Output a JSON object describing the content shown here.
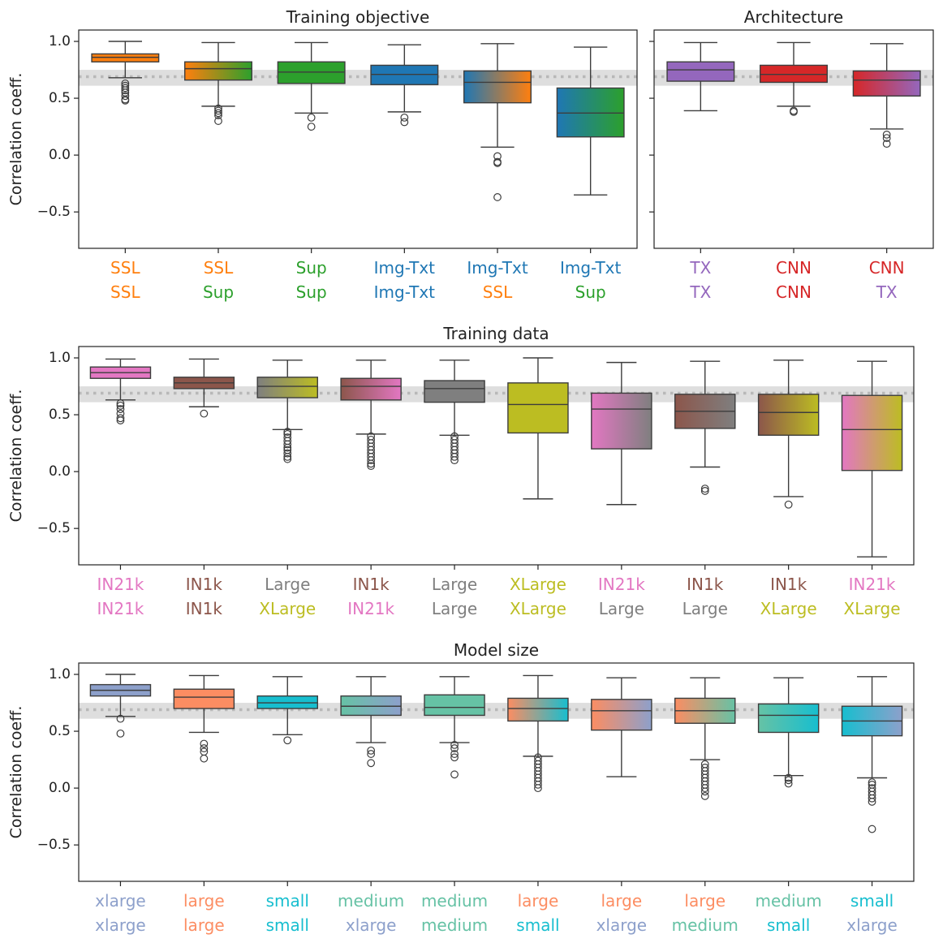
{
  "chart_data": [
    {
      "id": "objective",
      "type": "box",
      "title": "Training objective",
      "ylabel": "Correlation coeff.",
      "ylim": [
        -0.82,
        1.1
      ],
      "yticks": [
        1.0,
        0.5,
        0.0,
        -0.5
      ],
      "ytick_labels": [
        "1.0",
        "0.5",
        "0.0",
        "−0.5"
      ],
      "reference_band": [
        0.61,
        0.75
      ],
      "reference_line": 0.69,
      "boxes": [
        {
          "labels": [
            "SSL",
            "SSL"
          ],
          "colors": [
            "#ff7f0e",
            "#ff7f0e"
          ],
          "q1": 0.82,
          "median": 0.86,
          "q3": 0.89,
          "whisker_low": 0.68,
          "whisker_high": 1.0,
          "outliers": [
            0.63,
            0.61,
            0.59,
            0.57,
            0.55,
            0.52,
            0.49,
            0.48
          ]
        },
        {
          "labels": [
            "SSL",
            "Sup"
          ],
          "colors": [
            "#ff7f0e",
            "#2ca02c"
          ],
          "q1": 0.66,
          "median": 0.76,
          "q3": 0.82,
          "whisker_low": 0.43,
          "whisker_high": 0.99,
          "outliers": [
            0.41,
            0.39,
            0.37,
            0.35,
            0.3
          ]
        },
        {
          "labels": [
            "Sup",
            "Sup"
          ],
          "colors": [
            "#2ca02c",
            "#2ca02c"
          ],
          "q1": 0.63,
          "median": 0.73,
          "q3": 0.82,
          "whisker_low": 0.37,
          "whisker_high": 0.99,
          "outliers": [
            0.33,
            0.25
          ]
        },
        {
          "labels": [
            "Img-Txt",
            "Img-Txt"
          ],
          "colors": [
            "#1f77b4",
            "#1f77b4"
          ],
          "q1": 0.62,
          "median": 0.71,
          "q3": 0.79,
          "whisker_low": 0.38,
          "whisker_high": 0.97,
          "outliers": [
            0.33,
            0.29
          ]
        },
        {
          "labels": [
            "Img-Txt",
            "SSL"
          ],
          "colors": [
            "#1f77b4",
            "#ff7f0e"
          ],
          "q1": 0.46,
          "median": 0.64,
          "q3": 0.74,
          "whisker_low": 0.07,
          "whisker_high": 0.98,
          "outliers": [
            -0.01,
            -0.06,
            -0.07,
            -0.37
          ]
        },
        {
          "labels": [
            "Img-Txt",
            "Sup"
          ],
          "colors": [
            "#1f77b4",
            "#2ca02c"
          ],
          "q1": 0.16,
          "median": 0.37,
          "q3": 0.59,
          "whisker_low": -0.35,
          "whisker_high": 0.95,
          "outliers": []
        }
      ]
    },
    {
      "id": "architecture",
      "type": "box",
      "title": "Architecture",
      "ylim": [
        -0.82,
        1.1
      ],
      "reference_band": [
        0.61,
        0.75
      ],
      "reference_line": 0.69,
      "boxes": [
        {
          "labels": [
            "TX",
            "TX"
          ],
          "colors": [
            "#9467bd",
            "#9467bd"
          ],
          "q1": 0.65,
          "median": 0.75,
          "q3": 0.82,
          "whisker_low": 0.39,
          "whisker_high": 0.99,
          "outliers": []
        },
        {
          "labels": [
            "CNN",
            "CNN"
          ],
          "colors": [
            "#d62728",
            "#d62728"
          ],
          "q1": 0.64,
          "median": 0.71,
          "q3": 0.79,
          "whisker_low": 0.43,
          "whisker_high": 0.99,
          "outliers": [
            0.39,
            0.38
          ]
        },
        {
          "labels": [
            "CNN",
            "TX"
          ],
          "colors": [
            "#d62728",
            "#9467bd"
          ],
          "q1": 0.52,
          "median": 0.66,
          "q3": 0.74,
          "whisker_low": 0.23,
          "whisker_high": 0.98,
          "outliers": [
            0.18,
            0.15,
            0.1
          ]
        }
      ]
    },
    {
      "id": "data",
      "type": "box",
      "title": "Training data",
      "ylabel": "Correlation coeff.",
      "ylim": [
        -0.82,
        1.1
      ],
      "yticks": [
        1.0,
        0.5,
        0.0,
        -0.5
      ],
      "ytick_labels": [
        "1.0",
        "0.5",
        "0.0",
        "−0.5"
      ],
      "reference_band": [
        0.61,
        0.75
      ],
      "reference_line": 0.69,
      "boxes": [
        {
          "labels": [
            "IN21k",
            "IN21k"
          ],
          "colors": [
            "#e377c2",
            "#e377c2"
          ],
          "q1": 0.82,
          "median": 0.87,
          "q3": 0.92,
          "whisker_low": 0.63,
          "whisker_high": 0.99,
          "outliers": [
            0.6,
            0.58,
            0.55,
            0.51,
            0.47,
            0.45
          ]
        },
        {
          "labels": [
            "IN1k",
            "IN1k"
          ],
          "colors": [
            "#8c564b",
            "#8c564b"
          ],
          "q1": 0.73,
          "median": 0.78,
          "q3": 0.83,
          "whisker_low": 0.57,
          "whisker_high": 0.99,
          "outliers": [
            0.51
          ]
        },
        {
          "labels": [
            "Large",
            "XLarge"
          ],
          "colors": [
            "#7f7f7f",
            "#bcbd22"
          ],
          "q1": 0.65,
          "median": 0.75,
          "q3": 0.83,
          "whisker_low": 0.37,
          "whisker_high": 0.98,
          "outliers": [
            0.35,
            0.33,
            0.3,
            0.27,
            0.24,
            0.21,
            0.19,
            0.16,
            0.13,
            0.11
          ]
        },
        {
          "labels": [
            "IN1k",
            "IN21k"
          ],
          "colors": [
            "#8c564b",
            "#e377c2"
          ],
          "q1": 0.63,
          "median": 0.75,
          "q3": 0.82,
          "whisker_low": 0.33,
          "whisker_high": 0.98,
          "outliers": [
            0.31,
            0.28,
            0.25,
            0.22,
            0.19,
            0.16,
            0.13,
            0.1,
            0.07,
            0.05
          ]
        },
        {
          "labels": [
            "Large",
            "Large"
          ],
          "colors": [
            "#7f7f7f",
            "#7f7f7f"
          ],
          "q1": 0.61,
          "median": 0.73,
          "q3": 0.8,
          "whisker_low": 0.32,
          "whisker_high": 0.98,
          "outliers": [
            0.31,
            0.28,
            0.25,
            0.22,
            0.19,
            0.16,
            0.13,
            0.1
          ]
        },
        {
          "labels": [
            "XLarge",
            "XLarge"
          ],
          "colors": [
            "#bcbd22",
            "#bcbd22"
          ],
          "q1": 0.34,
          "median": 0.59,
          "q3": 0.78,
          "whisker_low": -0.24,
          "whisker_high": 1.0,
          "outliers": []
        },
        {
          "labels": [
            "IN21k",
            "Large"
          ],
          "colors": [
            "#e377c2",
            "#7f7f7f"
          ],
          "q1": 0.2,
          "median": 0.55,
          "q3": 0.69,
          "whisker_low": -0.29,
          "whisker_high": 0.96,
          "outliers": []
        },
        {
          "labels": [
            "IN1k",
            "Large"
          ],
          "colors": [
            "#8c564b",
            "#7f7f7f"
          ],
          "q1": 0.38,
          "median": 0.53,
          "q3": 0.68,
          "whisker_low": 0.04,
          "whisker_high": 0.97,
          "outliers": [
            -0.15,
            -0.17
          ]
        },
        {
          "labels": [
            "IN1k",
            "XLarge"
          ],
          "colors": [
            "#8c564b",
            "#bcbd22"
          ],
          "q1": 0.32,
          "median": 0.52,
          "q3": 0.68,
          "whisker_low": -0.22,
          "whisker_high": 0.98,
          "outliers": [
            -0.29
          ]
        },
        {
          "labels": [
            "IN21k",
            "XLarge"
          ],
          "colors": [
            "#e377c2",
            "#bcbd22"
          ],
          "q1": 0.01,
          "median": 0.37,
          "q3": 0.67,
          "whisker_low": -0.75,
          "whisker_high": 0.97,
          "outliers": []
        }
      ]
    },
    {
      "id": "size",
      "type": "box",
      "title": "Model size",
      "ylabel": "Correlation coeff.",
      "ylim": [
        -0.82,
        1.1
      ],
      "yticks": [
        1.0,
        0.5,
        0.0,
        -0.5
      ],
      "ytick_labels": [
        "1.0",
        "0.5",
        "0.0",
        "−0.5"
      ],
      "reference_band": [
        0.61,
        0.75
      ],
      "reference_line": 0.69,
      "boxes": [
        {
          "labels": [
            "xlarge",
            "xlarge"
          ],
          "colors": [
            "#8da0cb",
            "#8da0cb"
          ],
          "q1": 0.81,
          "median": 0.86,
          "q3": 0.91,
          "whisker_low": 0.63,
          "whisker_high": 1.0,
          "outliers": [
            0.61,
            0.48
          ]
        },
        {
          "labels": [
            "large",
            "large"
          ],
          "colors": [
            "#fc8d62",
            "#fc8d62"
          ],
          "q1": 0.7,
          "median": 0.8,
          "q3": 0.87,
          "whisker_low": 0.49,
          "whisker_high": 0.99,
          "outliers": [
            0.39,
            0.35,
            0.32,
            0.26
          ]
        },
        {
          "labels": [
            "small",
            "small"
          ],
          "colors": [
            "#17becf",
            "#17becf"
          ],
          "q1": 0.7,
          "median": 0.75,
          "q3": 0.81,
          "whisker_low": 0.47,
          "whisker_high": 0.98,
          "outliers": [
            0.42
          ]
        },
        {
          "labels": [
            "medium",
            "xlarge"
          ],
          "colors": [
            "#66c2a5",
            "#8da0cb"
          ],
          "q1": 0.64,
          "median": 0.72,
          "q3": 0.81,
          "whisker_low": 0.4,
          "whisker_high": 0.98,
          "outliers": [
            0.33,
            0.3,
            0.22
          ]
        },
        {
          "labels": [
            "medium",
            "medium"
          ],
          "colors": [
            "#66c2a5",
            "#66c2a5"
          ],
          "q1": 0.64,
          "median": 0.71,
          "q3": 0.82,
          "whisker_low": 0.4,
          "whisker_high": 0.98,
          "outliers": [
            0.38,
            0.35,
            0.3,
            0.27,
            0.12
          ]
        },
        {
          "labels": [
            "large",
            "small"
          ],
          "colors": [
            "#fc8d62",
            "#17becf"
          ],
          "q1": 0.59,
          "median": 0.7,
          "q3": 0.79,
          "whisker_low": 0.28,
          "whisker_high": 0.99,
          "outliers": [
            0.27,
            0.24,
            0.21,
            0.18,
            0.15,
            0.12,
            0.09,
            0.06,
            0.03,
            0.0
          ]
        },
        {
          "labels": [
            "large",
            "xlarge"
          ],
          "colors": [
            "#fc8d62",
            "#8da0cb"
          ],
          "q1": 0.51,
          "median": 0.68,
          "q3": 0.78,
          "whisker_low": 0.1,
          "whisker_high": 0.97,
          "outliers": []
        },
        {
          "labels": [
            "large",
            "medium"
          ],
          "colors": [
            "#fc8d62",
            "#66c2a5"
          ],
          "q1": 0.57,
          "median": 0.68,
          "q3": 0.79,
          "whisker_low": 0.25,
          "whisker_high": 0.97,
          "outliers": [
            0.21,
            0.18,
            0.15,
            0.12,
            0.09,
            0.06,
            0.03,
            0.0,
            -0.03,
            -0.07
          ]
        },
        {
          "labels": [
            "medium",
            "small"
          ],
          "colors": [
            "#66c2a5",
            "#17becf"
          ],
          "q1": 0.49,
          "median": 0.64,
          "q3": 0.74,
          "whisker_low": 0.11,
          "whisker_high": 0.97,
          "outliers": [
            0.09,
            0.07,
            0.04
          ]
        },
        {
          "labels": [
            "small",
            "xlarge"
          ],
          "colors": [
            "#17becf",
            "#8da0cb"
          ],
          "q1": 0.46,
          "median": 0.59,
          "q3": 0.72,
          "whisker_low": 0.09,
          "whisker_high": 0.98,
          "outliers": [
            0.05,
            0.03,
            0.0,
            -0.03,
            -0.06,
            -0.09,
            -0.12,
            -0.36
          ]
        }
      ]
    }
  ]
}
